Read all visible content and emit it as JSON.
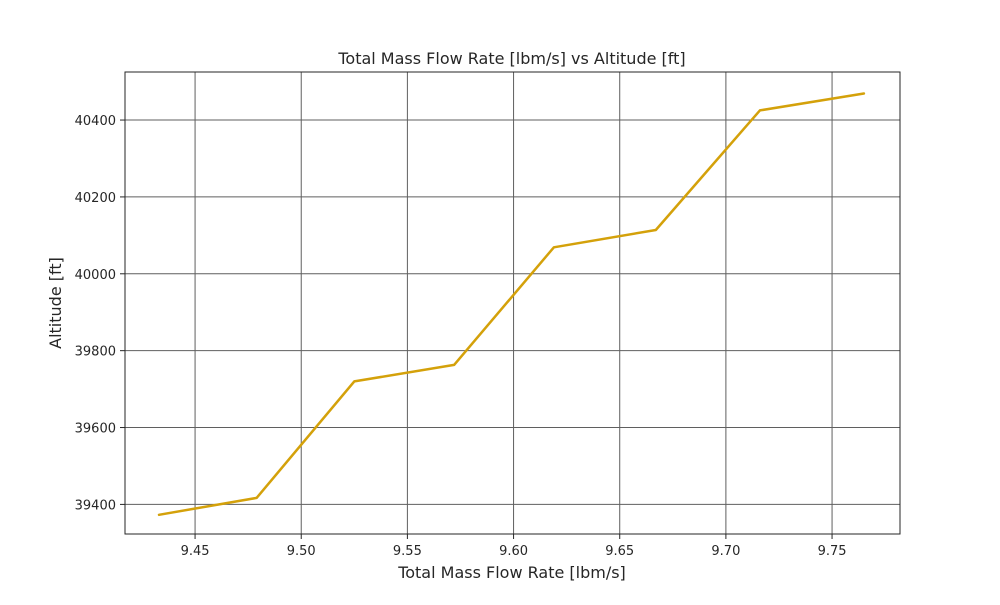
{
  "chart_data": {
    "type": "line",
    "title": "Total Mass Flow Rate [lbm/s] vs Altitude [ft]",
    "xlabel": "Total Mass Flow Rate [lbm/s]",
    "ylabel": "Altitude [ft]",
    "xlim": [
      9.417,
      9.782
    ],
    "ylim": [
      39323,
      40525
    ],
    "xticks": [
      9.45,
      9.5,
      9.55,
      9.6,
      9.65,
      9.7,
      9.75
    ],
    "xtick_labels": [
      "9.45",
      "9.50",
      "9.55",
      "9.60",
      "9.65",
      "9.70",
      "9.75"
    ],
    "yticks": [
      39400,
      39600,
      39800,
      40000,
      40200,
      40400
    ],
    "ytick_labels": [
      "39400",
      "39600",
      "39800",
      "40000",
      "40200",
      "40400"
    ],
    "grid": true,
    "series": [
      {
        "color": "#d4a10a",
        "x": [
          9.433,
          9.479,
          9.525,
          9.572,
          9.619,
          9.667,
          9.716,
          9.765
        ],
        "y": [
          39373,
          39417,
          39720,
          39763,
          40069,
          40114,
          40425,
          40469
        ]
      }
    ]
  }
}
